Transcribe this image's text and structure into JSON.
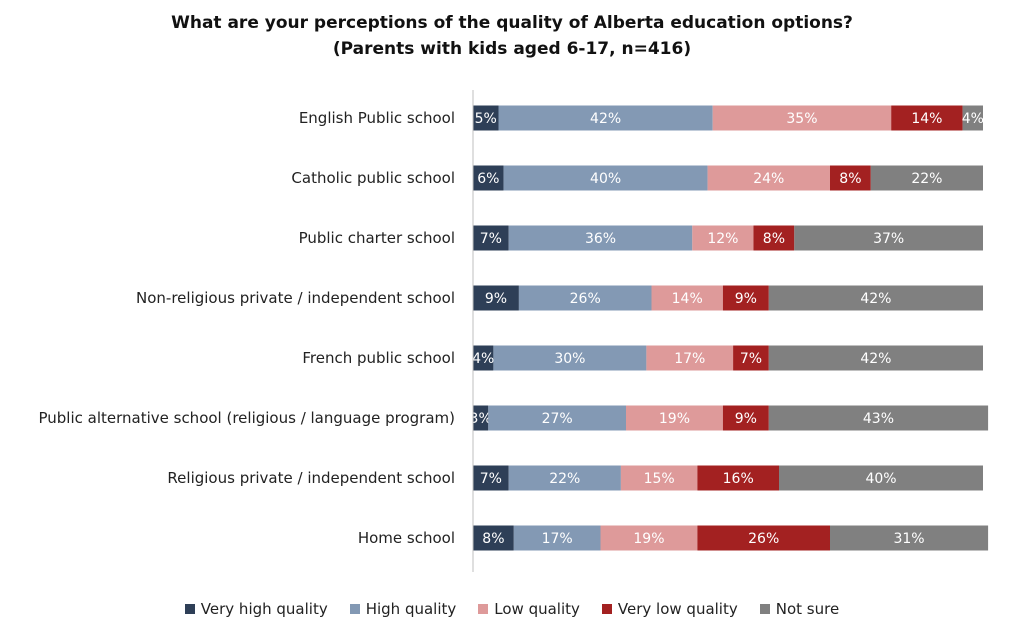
{
  "chart_data": {
    "type": "bar",
    "orientation": "horizontal",
    "stacked": true,
    "title": "What are your perceptions of the quality of Alberta education options?",
    "subtitle": "(Parents with kids aged 6-17, n=416)",
    "xlabel": "",
    "ylabel": "",
    "xlim": [
      0,
      100
    ],
    "grid": false,
    "legend_position": "bottom",
    "categories": [
      "English Public school",
      "Catholic public school",
      "Public charter school",
      "Non-religious private / independent school",
      "French public school",
      "Public alternative school (religious / language program)",
      "Religious private / independent school",
      "Home school"
    ],
    "series": [
      {
        "name": "Very high quality",
        "color": "#2e3f57",
        "values": [
          5,
          6,
          7,
          9,
          4,
          3,
          7,
          8
        ]
      },
      {
        "name": "High quality",
        "color": "#8399b4",
        "values": [
          42,
          40,
          36,
          26,
          30,
          27,
          22,
          17
        ]
      },
      {
        "name": "Low quality",
        "color": "#de9a9a",
        "values": [
          35,
          24,
          12,
          14,
          17,
          19,
          15,
          19
        ]
      },
      {
        "name": "Very low quality",
        "color": "#a32121",
        "values": [
          14,
          8,
          8,
          9,
          7,
          9,
          16,
          26
        ]
      },
      {
        "name": "Not sure",
        "color": "#808080",
        "values": [
          4,
          22,
          37,
          42,
          42,
          43,
          40,
          31
        ]
      }
    ]
  }
}
